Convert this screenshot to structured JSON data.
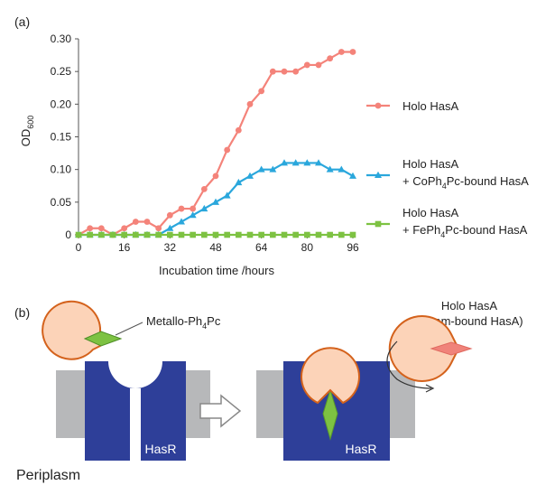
{
  "panel_a_label": "(a)",
  "panel_b_label": "(b)",
  "chart_data": {
    "type": "line",
    "xlabel": "Incubation time /hours",
    "ylabel_main": "OD",
    "ylabel_sub": "600",
    "xlim": [
      0,
      96
    ],
    "ylim": [
      0,
      0.3
    ],
    "x_ticks": [
      "0",
      "16",
      "32",
      "48",
      "64",
      "80",
      "96"
    ],
    "y_ticks": [
      "0",
      "0.05",
      "0.10",
      "0.15",
      "0.20",
      "0.25",
      "0.30"
    ],
    "grid": false,
    "legend_position": "right",
    "x": [
      0,
      4,
      8,
      12,
      16,
      20,
      24,
      28,
      32,
      36,
      40,
      44,
      48,
      52,
      56,
      60,
      64,
      68,
      72,
      76,
      80,
      84,
      88,
      92,
      96
    ],
    "series": [
      {
        "name": "Holo HasA",
        "legend_lines": [
          "Holo HasA"
        ],
        "color": "#f4837a",
        "marker": "circle",
        "values": [
          0,
          0.01,
          0.01,
          0,
          0.01,
          0.02,
          0.02,
          0.01,
          0.03,
          0.04,
          0.04,
          0.07,
          0.09,
          0.13,
          0.16,
          0.2,
          0.22,
          0.25,
          0.25,
          0.25,
          0.26,
          0.26,
          0.27,
          0.28,
          0.28
        ]
      },
      {
        "name": "Holo HasA + CoPh4Pc-bound HasA",
        "legend_lines": [
          "Holo HasA",
          "+ CoPh",
          "4",
          "Pc-bound HasA"
        ],
        "color": "#2aa7dc",
        "marker": "triangle",
        "values": [
          0,
          0,
          0,
          0,
          0,
          0,
          0,
          0,
          0.01,
          0.02,
          0.03,
          0.04,
          0.05,
          0.06,
          0.08,
          0.09,
          0.1,
          0.1,
          0.11,
          0.11,
          0.11,
          0.11,
          0.1,
          0.1,
          0.09
        ]
      },
      {
        "name": "Holo HasA + FePh4Pc-bound HasA",
        "legend_lines": [
          "Holo HasA",
          "+ FePh",
          "4",
          "Pc-bound HasA"
        ],
        "color": "#7dc242",
        "marker": "square",
        "values": [
          0,
          0,
          0,
          0,
          0,
          0,
          0,
          0,
          0,
          0,
          0,
          0,
          0,
          0,
          0,
          0,
          0,
          0,
          0,
          0,
          0,
          0,
          0,
          0,
          0
        ]
      }
    ]
  },
  "diagram": {
    "metallo_label_main": "Metallo-Ph",
    "metallo_label_sub": "4",
    "metallo_label_end": "Pc",
    "holo_title_line1": "Holo HasA",
    "holo_title_line2": "(Heam-bound  HasA)",
    "receptor_label_left": "HasR",
    "receptor_label_right": "HasR",
    "periplasm_label": "Periplasm",
    "colors": {
      "hasa_fill": "#fcd3b8",
      "hasa_stroke": "#d4621c",
      "receptor": "#2e3f99",
      "membrane": "#b7b8ba",
      "metallo": "#7dc242",
      "heme": "#f0837a"
    }
  }
}
